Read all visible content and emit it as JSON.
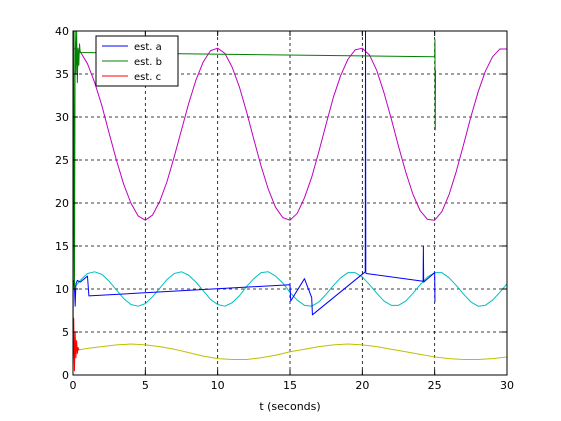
{
  "chart_data": {
    "type": "line",
    "xlabel": "t (seconds)",
    "ylabel": "",
    "xlim": [
      0,
      30
    ],
    "ylim": [
      0,
      40
    ],
    "xticks": [
      0,
      5,
      10,
      15,
      20,
      25,
      30
    ],
    "yticks": [
      0,
      5,
      10,
      15,
      20,
      25,
      30,
      35,
      40
    ],
    "xtick_labels": [
      "0",
      "5",
      "10",
      "15",
      "20",
      "25",
      "30"
    ],
    "ytick_labels": [
      "0",
      "5",
      "10",
      "15",
      "20",
      "25",
      "30",
      "35",
      "40"
    ],
    "grid": true,
    "legend_position": "top-left",
    "legend": [
      {
        "label": "est. a",
        "color": "#0000ff"
      },
      {
        "label": "est. b",
        "color": "#008000"
      },
      {
        "label": "est. c",
        "color": "#ff0000"
      }
    ],
    "series": [
      {
        "color": "#bf00bf",
        "x": [
          0,
          0.5,
          1,
          1.5,
          2,
          2.5,
          3,
          3.5,
          4,
          4.5,
          5,
          5.5,
          6,
          6.5,
          7,
          7.5,
          8,
          8.5,
          9,
          9.5,
          10,
          10.5,
          11,
          11.5,
          12,
          12.5,
          13,
          13.5,
          14,
          14.5,
          15,
          15.5,
          16,
          16.5,
          17,
          17.5,
          18,
          18.5,
          19,
          19.5,
          20,
          20.5,
          21,
          21.5,
          22,
          22.5,
          23,
          23.5,
          24,
          24.5,
          25,
          25.5,
          26,
          26.5,
          27,
          27.5,
          28,
          28.5,
          29,
          29.5,
          30
        ],
        "y": [
          38.0,
          37.6,
          36.2,
          34.0,
          31.3,
          28.1,
          25.0,
          22.2,
          20.0,
          18.5,
          18.0,
          18.6,
          20.2,
          22.5,
          25.4,
          28.5,
          31.6,
          34.3,
          36.4,
          37.7,
          38.0,
          37.4,
          35.8,
          33.5,
          30.6,
          27.4,
          24.3,
          21.6,
          19.5,
          18.3,
          18.0,
          18.8,
          20.6,
          23.0,
          26.0,
          29.2,
          32.3,
          34.8,
          36.7,
          37.8,
          38.0,
          37.2,
          35.4,
          32.8,
          29.8,
          26.6,
          23.6,
          21.0,
          19.1,
          18.1,
          18.0,
          19.0,
          21.0,
          23.7,
          26.8,
          30.0,
          32.9,
          35.3,
          37.0,
          37.9,
          37.9
        ]
      },
      {
        "color": "#00bfbf",
        "x": [
          0,
          0.5,
          1,
          1.5,
          2,
          2.5,
          3,
          3.5,
          4,
          4.5,
          5,
          5.5,
          6,
          6.5,
          7,
          7.5,
          8,
          8.5,
          9,
          9.5,
          10,
          10.5,
          11,
          11.5,
          12,
          12.5,
          13,
          13.5,
          14,
          14.5,
          15,
          15.5,
          16,
          16.5,
          17,
          17.5,
          18,
          18.5,
          19,
          19.5,
          20,
          20.5,
          21,
          21.5,
          22,
          22.5,
          23,
          23.5,
          24,
          24.5,
          25,
          25.5,
          26,
          26.5,
          27,
          27.5,
          28,
          28.5,
          29,
          29.5,
          30
        ],
        "y": [
          10.0,
          11.0,
          11.8,
          12.0,
          11.7,
          10.9,
          9.9,
          8.9,
          8.2,
          8.0,
          8.3,
          9.1,
          10.1,
          11.1,
          11.8,
          12.0,
          11.6,
          10.8,
          9.8,
          8.8,
          8.2,
          8.0,
          8.4,
          9.2,
          10.3,
          11.2,
          11.9,
          12.0,
          11.5,
          10.7,
          9.6,
          8.7,
          8.1,
          8.0,
          8.5,
          9.4,
          10.4,
          11.3,
          11.9,
          11.9,
          11.4,
          10.5,
          9.5,
          8.6,
          8.1,
          8.1,
          8.6,
          9.5,
          10.5,
          11.4,
          11.9,
          11.9,
          11.3,
          10.4,
          9.4,
          8.5,
          8.0,
          8.1,
          8.7,
          9.6,
          10.6
        ]
      },
      {
        "color": "#bfbf00",
        "x": [
          0,
          1,
          2,
          3,
          4,
          5,
          6,
          7,
          8,
          9,
          10,
          11,
          12,
          13,
          14,
          15,
          16,
          17,
          18,
          19,
          20,
          21,
          22,
          23,
          24,
          25,
          26,
          27,
          28,
          29,
          30
        ],
        "y": [
          2.8,
          3.1,
          3.3,
          3.5,
          3.6,
          3.5,
          3.3,
          3.0,
          2.6,
          2.2,
          1.9,
          1.8,
          1.8,
          2.0,
          2.3,
          2.7,
          3.0,
          3.3,
          3.5,
          3.6,
          3.5,
          3.3,
          3.0,
          2.7,
          2.4,
          2.1,
          1.9,
          1.8,
          1.8,
          1.9,
          2.1
        ]
      },
      {
        "name": "est. a",
        "color": "#0000ff",
        "x": [
          0,
          0.05,
          0.1,
          0.15,
          0.2,
          0.3,
          0.5,
          1.0,
          1.1,
          15.0,
          15.05,
          16.0,
          16.5,
          16.55,
          20.2,
          20.22,
          20.24,
          20.26,
          24.2,
          24.22,
          24.24,
          25.0,
          25.02
        ],
        "y": [
          10.0,
          11.0,
          10.3,
          8.0,
          10.6,
          11.0,
          10.8,
          11.5,
          9.2,
          10.5,
          8.6,
          11.2,
          9.0,
          7.0,
          12.0,
          40.0,
          12.0,
          11.8,
          10.9,
          15.0,
          10.8,
          11.9,
          8.5
        ]
      },
      {
        "name": "est. b",
        "color": "#008000",
        "x": [
          0.0,
          0.05,
          0.1,
          0.15,
          0.2,
          0.25,
          0.3,
          0.35,
          0.4,
          0.45,
          0.5,
          25.0,
          25.02,
          25.04,
          25.06
        ],
        "y": [
          0.0,
          40.0,
          10.0,
          40.0,
          35.0,
          40.0,
          34.0,
          38.0,
          36.0,
          38.5,
          37.5,
          37.0,
          39.0,
          28.5,
          35.5
        ]
      },
      {
        "name": "est. c",
        "color": "#ff0000",
        "x": [
          0.0,
          0.05,
          0.1,
          0.15,
          0.2,
          0.25,
          0.3,
          0.35,
          0.4
        ],
        "y": [
          1.0,
          6.6,
          0.5,
          5.0,
          2.0,
          4.0,
          2.5,
          3.2,
          2.9
        ]
      }
    ]
  }
}
